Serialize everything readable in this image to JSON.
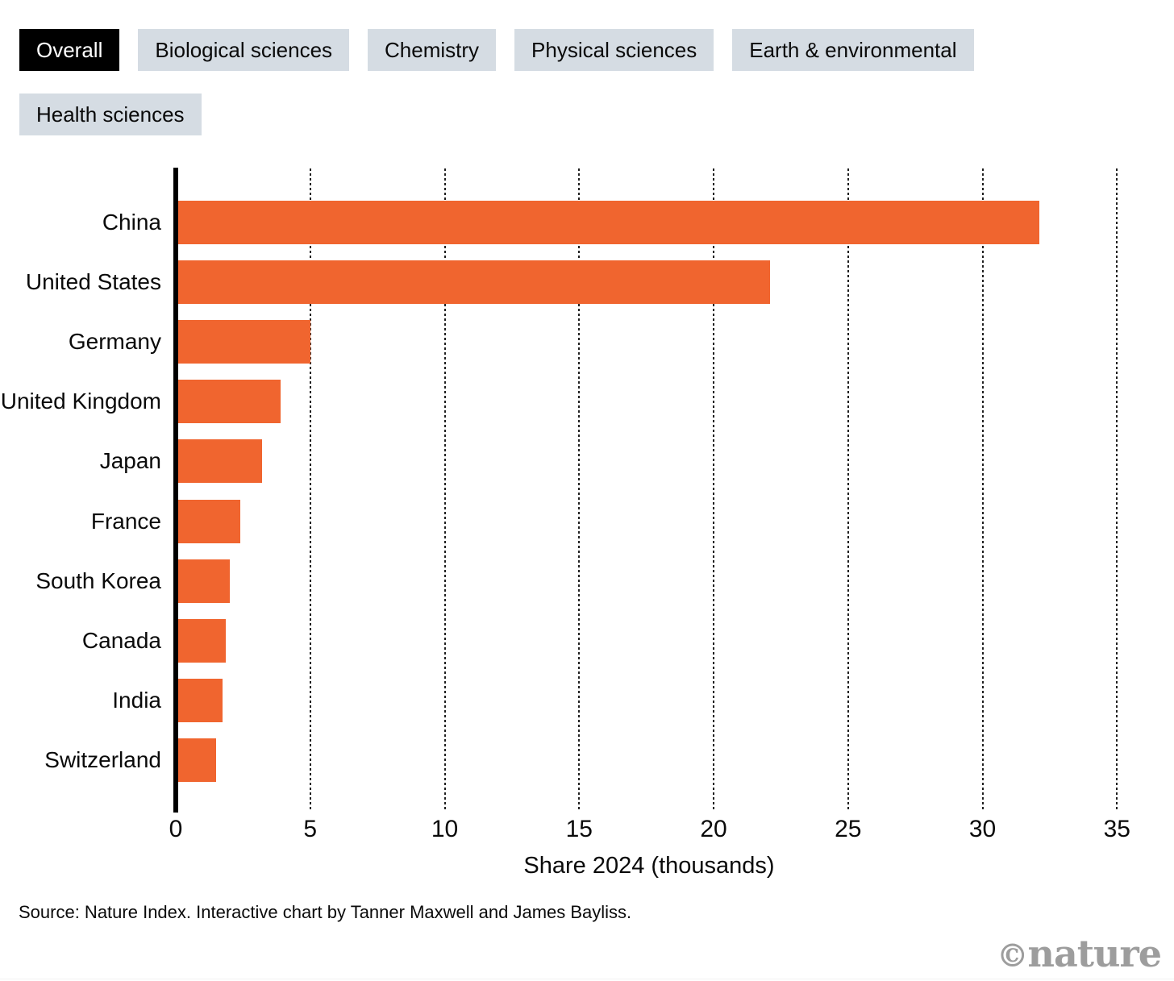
{
  "tabs": {
    "items": [
      {
        "label": "Overall",
        "active": true
      },
      {
        "label": "Biological sciences",
        "active": false
      },
      {
        "label": "Chemistry",
        "active": false
      },
      {
        "label": "Physical sciences",
        "active": false
      },
      {
        "label": "Earth & environmental",
        "active": false
      },
      {
        "label": "Health sciences",
        "active": false
      }
    ]
  },
  "chart_data": {
    "type": "bar",
    "orientation": "horizontal",
    "categories": [
      "China",
      "United States",
      "Germany",
      "United Kingdom",
      "Japan",
      "France",
      "South Korea",
      "Canada",
      "India",
      "Switzerland"
    ],
    "values": [
      32.1,
      22.1,
      5.0,
      3.9,
      3.2,
      2.4,
      2.0,
      1.85,
      1.75,
      1.5
    ],
    "title": "",
    "xlabel": "Share 2024 (thousands)",
    "ylabel": "",
    "xticks": [
      0,
      5,
      10,
      15,
      20,
      25,
      30,
      35
    ],
    "xlim": [
      0,
      36.6
    ],
    "grid": "vertical-dotted",
    "legend": "none",
    "bar_color": "#f0652f",
    "axis_color": "#000000"
  },
  "footer": {
    "source": "Source: Nature Index. Interactive chart by Tanner Maxwell and James Bayliss.",
    "logo_symbol": "©",
    "logo_text": "nature"
  },
  "colors": {
    "tab_active_bg": "#000000",
    "tab_active_text": "#ffffff",
    "tab_bg": "#d5dce3",
    "tab_text": "#0a0a0a",
    "logo_gray": "#9d9d9d"
  }
}
